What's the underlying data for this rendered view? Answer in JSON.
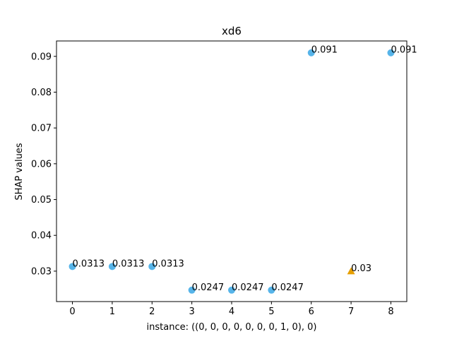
{
  "chart_data": {
    "type": "scatter",
    "title": "xd6",
    "xlabel": "instance: ((0, 0, 0, 0, 0, 0, 0, 1, 0), 0)",
    "ylabel": "SHAP values",
    "xlim": [
      -0.4,
      8.4
    ],
    "ylim": [
      0.0215,
      0.0943
    ],
    "xticks": [
      0,
      1,
      2,
      3,
      4,
      5,
      6,
      7,
      8
    ],
    "yticks": [
      0.03,
      0.04,
      0.05,
      0.06,
      0.07,
      0.08,
      0.09
    ],
    "ytick_labels": [
      "0.03",
      "0.04",
      "0.05",
      "0.06",
      "0.07",
      "0.08",
      "0.09"
    ],
    "points": [
      {
        "x": 0,
        "y": 0.0313,
        "label": "0.0313",
        "marker": "circle",
        "color": "#56b4e9"
      },
      {
        "x": 1,
        "y": 0.0313,
        "label": "0.0313",
        "marker": "circle",
        "color": "#56b4e9"
      },
      {
        "x": 2,
        "y": 0.0313,
        "label": "0.0313",
        "marker": "circle",
        "color": "#56b4e9"
      },
      {
        "x": 3,
        "y": 0.0247,
        "label": "0.0247",
        "marker": "circle",
        "color": "#56b4e9"
      },
      {
        "x": 4,
        "y": 0.0247,
        "label": "0.0247",
        "marker": "circle",
        "color": "#56b4e9"
      },
      {
        "x": 5,
        "y": 0.0247,
        "label": "0.0247",
        "marker": "circle",
        "color": "#56b4e9"
      },
      {
        "x": 6,
        "y": 0.091,
        "label": "0.091",
        "marker": "circle",
        "color": "#56b4e9"
      },
      {
        "x": 7,
        "y": 0.03,
        "label": "0.03",
        "marker": "triangle",
        "color": "#e69f00"
      },
      {
        "x": 8,
        "y": 0.091,
        "label": "0.091",
        "marker": "circle",
        "color": "#56b4e9"
      }
    ],
    "grid": false,
    "legend": "none"
  }
}
